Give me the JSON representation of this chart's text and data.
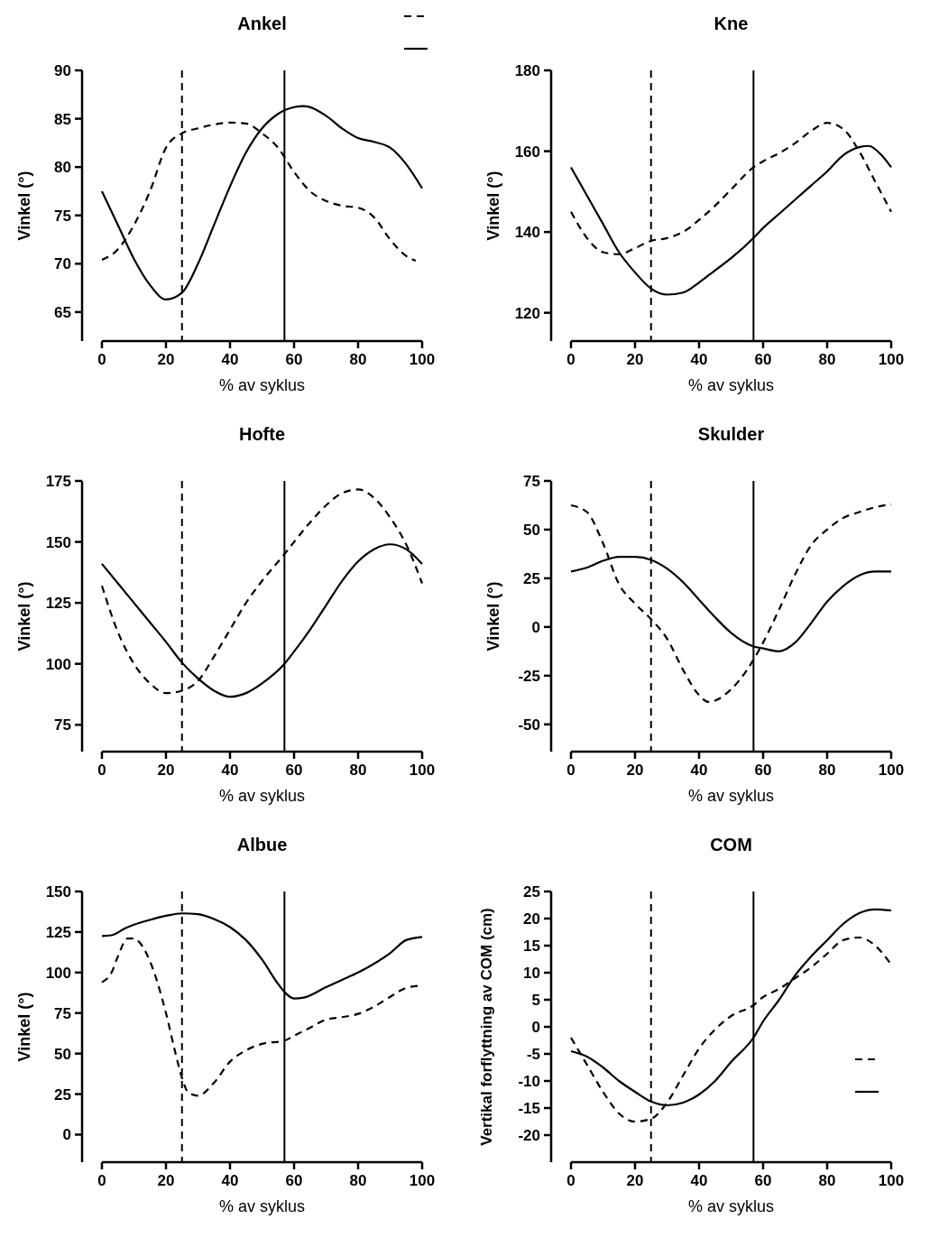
{
  "chart_data": [
    {
      "type": "line",
      "title": "Ankel",
      "xlabel": "% av syklus",
      "ylabel": "Vinkel (°)",
      "xlim": [
        0,
        100
      ],
      "xticks": [
        0,
        20,
        40,
        60,
        80,
        100
      ],
      "ylim": [
        62,
        90
      ],
      "yticks": [
        65,
        70,
        75,
        80,
        85,
        90
      ],
      "grid": false,
      "ref_lines": [
        {
          "axis": "x",
          "value": 25,
          "line_style": "dashed",
          "color": "#000000"
        },
        {
          "axis": "x",
          "value": 57,
          "line_style": "solid",
          "color": "#000000"
        }
      ],
      "series": [
        {
          "color": "#000000",
          "line_style": "dashed",
          "x": [
            0,
            5,
            10,
            15,
            20,
            25,
            30,
            35,
            40,
            45,
            50,
            55,
            60,
            65,
            70,
            75,
            80,
            85,
            90,
            95,
            98
          ],
          "values": [
            70.4,
            71.5,
            74,
            77.5,
            82,
            83.5,
            84,
            84.4,
            84.6,
            84.5,
            83.5,
            82,
            79.5,
            77.5,
            76.5,
            76,
            75.8,
            74.8,
            72.5,
            70.8,
            70.3
          ]
        },
        {
          "color": "#000000",
          "line_style": "solid",
          "x": [
            0,
            5,
            10,
            15,
            20,
            25,
            30,
            35,
            40,
            45,
            50,
            55,
            60,
            63,
            70,
            75,
            80,
            85,
            90,
            95,
            100
          ],
          "values": [
            77.5,
            74,
            70.5,
            67.8,
            66.3,
            67,
            70,
            74,
            78,
            81.5,
            84,
            85.5,
            86.2,
            86.3,
            85.3,
            84,
            83,
            82.6,
            82,
            80.3,
            77.8
          ]
        }
      ]
    },
    {
      "type": "line",
      "title": "Kne",
      "xlabel": "% av syklus",
      "ylabel": "Vinkel (°)",
      "xlim": [
        0,
        100
      ],
      "xticks": [
        0,
        20,
        40,
        60,
        80,
        100
      ],
      "ylim": [
        113,
        180
      ],
      "yticks": [
        120,
        140,
        160,
        180
      ],
      "grid": false,
      "ref_lines": [
        {
          "axis": "x",
          "value": 25,
          "line_style": "dashed",
          "color": "#000000"
        },
        {
          "axis": "x",
          "value": 57,
          "line_style": "solid",
          "color": "#000000"
        }
      ],
      "series": [
        {
          "color": "#000000",
          "line_style": "dashed",
          "x": [
            0,
            5,
            10,
            15,
            20,
            25,
            30,
            35,
            40,
            45,
            50,
            57,
            60,
            65,
            70,
            75,
            80,
            85,
            90,
            95,
            100
          ],
          "values": [
            145,
            138.5,
            135,
            134.5,
            136,
            137.8,
            138.5,
            140,
            143,
            146.5,
            150.5,
            156,
            157.5,
            159.5,
            162,
            165,
            167,
            165.5,
            160,
            152.5,
            145
          ]
        },
        {
          "color": "#000000",
          "line_style": "solid",
          "x": [
            0,
            5,
            10,
            15,
            20,
            25,
            30,
            35,
            40,
            45,
            50,
            57,
            60,
            65,
            70,
            75,
            80,
            85,
            90,
            93,
            97,
            100
          ],
          "values": [
            156,
            149,
            142,
            135,
            130,
            126,
            124.5,
            125,
            127.5,
            130.5,
            133.5,
            138.5,
            141,
            144.5,
            148,
            151.5,
            155,
            159,
            161,
            161.3,
            159,
            156
          ]
        }
      ]
    },
    {
      "type": "line",
      "title": "Hofte",
      "xlabel": "% av syklus",
      "ylabel": "Vinkel (°)",
      "xlim": [
        0,
        100
      ],
      "xticks": [
        0,
        20,
        40,
        60,
        80,
        100
      ],
      "ylim": [
        64,
        175
      ],
      "yticks": [
        75,
        100,
        125,
        150,
        175
      ],
      "grid": false,
      "ref_lines": [
        {
          "axis": "x",
          "value": 25,
          "line_style": "dashed",
          "color": "#000000"
        },
        {
          "axis": "x",
          "value": 57,
          "line_style": "solid",
          "color": "#000000"
        }
      ],
      "series": [
        {
          "color": "#000000",
          "line_style": "dashed",
          "x": [
            0,
            5,
            10,
            15,
            20,
            25,
            30,
            35,
            40,
            45,
            50,
            57,
            60,
            65,
            70,
            75,
            80,
            85,
            90,
            95,
            100
          ],
          "values": [
            132,
            113,
            100,
            92,
            88,
            89,
            93,
            103,
            114,
            125,
            134,
            145,
            150,
            158,
            165,
            170,
            171.5,
            168,
            160,
            149,
            133
          ]
        },
        {
          "color": "#000000",
          "line_style": "solid",
          "x": [
            0,
            5,
            10,
            15,
            20,
            25,
            30,
            35,
            40,
            45,
            50,
            57,
            60,
            65,
            70,
            75,
            80,
            85,
            90,
            95,
            100
          ],
          "values": [
            141,
            133,
            125,
            117,
            109,
            100.5,
            94,
            89,
            86.5,
            88,
            92,
            100,
            105,
            114,
            124,
            134,
            142,
            147,
            149,
            147,
            141
          ]
        }
      ]
    },
    {
      "type": "line",
      "title": "Skulder",
      "xlabel": "% av syklus",
      "ylabel": "Vinkel (°)",
      "xlim": [
        0,
        100
      ],
      "xticks": [
        0,
        20,
        40,
        60,
        80,
        100
      ],
      "ylim": [
        -64,
        75
      ],
      "yticks": [
        -50,
        -25,
        0,
        25,
        50,
        75
      ],
      "grid": false,
      "ref_lines": [
        {
          "axis": "x",
          "value": 25,
          "line_style": "dashed",
          "color": "#000000"
        },
        {
          "axis": "x",
          "value": 57,
          "line_style": "solid",
          "color": "#000000"
        }
      ],
      "series": [
        {
          "color": "#000000",
          "line_style": "dashed",
          "x": [
            0,
            5,
            10,
            15,
            20,
            25,
            30,
            35,
            40,
            43,
            50,
            55,
            60,
            65,
            70,
            75,
            80,
            85,
            90,
            95,
            100
          ],
          "values": [
            62.5,
            59,
            43,
            22,
            12,
            4,
            -6,
            -22,
            -35,
            -38.5,
            -32,
            -22,
            -8,
            9,
            27,
            42,
            50,
            56,
            59,
            61.5,
            63
          ]
        },
        {
          "color": "#000000",
          "line_style": "solid",
          "x": [
            0,
            5,
            10,
            15,
            20,
            25,
            30,
            35,
            40,
            45,
            50,
            57,
            60,
            65,
            70,
            75,
            80,
            85,
            90,
            95,
            100
          ],
          "values": [
            28.5,
            30.5,
            34,
            36,
            36,
            34.5,
            30,
            23,
            14,
            5,
            -3,
            -10,
            -11,
            -12.5,
            -8,
            2,
            13,
            21,
            26.5,
            28.5,
            28.5
          ]
        }
      ]
    },
    {
      "type": "line",
      "title": "Albue",
      "xlabel": "% av syklus",
      "ylabel": "Vinkel (°)",
      "xlim": [
        0,
        100
      ],
      "xticks": [
        0,
        20,
        40,
        60,
        80,
        100
      ],
      "ylim": [
        -17,
        150
      ],
      "yticks": [
        0,
        25,
        50,
        75,
        100,
        125,
        150
      ],
      "grid": false,
      "ref_lines": [
        {
          "axis": "x",
          "value": 25,
          "line_style": "dashed",
          "color": "#000000"
        },
        {
          "axis": "x",
          "value": 57,
          "line_style": "solid",
          "color": "#000000"
        }
      ],
      "series": [
        {
          "color": "#000000",
          "line_style": "dashed",
          "x": [
            0,
            3,
            5,
            8,
            10,
            12,
            15,
            20,
            23,
            25,
            27,
            30,
            35,
            40,
            45,
            50,
            57,
            60,
            65,
            70,
            75,
            80,
            85,
            90,
            95,
            100
          ],
          "values": [
            94,
            100,
            110,
            121,
            121,
            118,
            107,
            75,
            50,
            35,
            26,
            24,
            32,
            45,
            52,
            56,
            58,
            61,
            66,
            71,
            72.5,
            74.5,
            79,
            85,
            90.5,
            92
          ]
        },
        {
          "color": "#000000",
          "line_style": "solid",
          "x": [
            0,
            3,
            7,
            10,
            15,
            20,
            25,
            30,
            35,
            40,
            45,
            50,
            55,
            57,
            60,
            63,
            70,
            75,
            80,
            85,
            90,
            95,
            100
          ],
          "values": [
            122.5,
            123,
            127,
            129.5,
            132.5,
            135,
            136.5,
            136,
            133,
            128,
            120,
            108,
            93,
            88,
            84,
            84.5,
            91,
            95.5,
            100,
            105.5,
            112,
            120,
            122
          ]
        }
      ]
    },
    {
      "type": "line",
      "title": "COM",
      "xlabel": "% av syklus",
      "ylabel": "Vertikal forflyttning av COM (cm)",
      "xlim": [
        0,
        100
      ],
      "xticks": [
        0,
        20,
        40,
        60,
        80,
        100
      ],
      "ylim": [
        -25,
        25
      ],
      "yticks": [
        -20,
        -15,
        -10,
        -5,
        0,
        5,
        10,
        15,
        20,
        25
      ],
      "grid": false,
      "ref_lines": [
        {
          "axis": "x",
          "value": 25,
          "line_style": "dashed",
          "color": "#000000"
        },
        {
          "axis": "x",
          "value": 57,
          "line_style": "solid",
          "color": "#000000"
        }
      ],
      "series": [
        {
          "color": "#000000",
          "line_style": "dashed",
          "x": [
            0,
            5,
            10,
            15,
            20,
            25,
            30,
            35,
            40,
            45,
            50,
            57,
            60,
            65,
            70,
            75,
            80,
            85,
            90,
            95,
            100
          ],
          "values": [
            -2,
            -7,
            -12,
            -16,
            -17.5,
            -17,
            -14,
            -9,
            -4,
            -0.5,
            2,
            4,
            5.5,
            7,
            9,
            11,
            13.5,
            16,
            16.5,
            15,
            11.5
          ]
        },
        {
          "color": "#000000",
          "line_style": "solid",
          "x": [
            0,
            5,
            10,
            15,
            20,
            25,
            30,
            35,
            40,
            45,
            50,
            57,
            60,
            65,
            70,
            75,
            80,
            85,
            90,
            95,
            100
          ],
          "values": [
            -4.5,
            -5.5,
            -7.5,
            -10,
            -12,
            -13.8,
            -14.5,
            -14,
            -12.5,
            -10,
            -6.5,
            -2,
            1,
            5,
            9.5,
            13,
            16,
            19,
            21,
            21.7,
            21.5
          ]
        }
      ]
    }
  ]
}
